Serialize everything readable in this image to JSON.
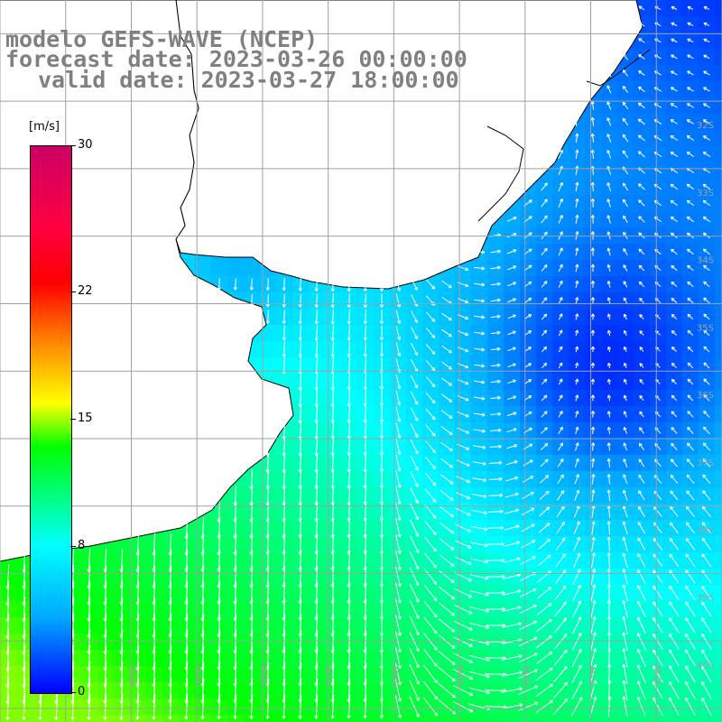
{
  "title": {
    "line1": "modelo GEFS-WAVE (NCEP)",
    "line2": "forecast date: 2023-03-26 00:00:00",
    "line3": "valid date: 2023-03-27 18:00:00"
  },
  "colorbar": {
    "unit": "[m/s]",
    "min": 0,
    "max": 30,
    "ticks": [
      {
        "value": 30,
        "label": "30"
      },
      {
        "value": 22,
        "label": "22"
      },
      {
        "value": 15,
        "label": "15"
      },
      {
        "value": 8,
        "label": "8"
      },
      {
        "value": 0,
        "label": "0"
      }
    ],
    "colors": [
      "#0000ff",
      "#00aaff",
      "#00ffff",
      "#00ff00",
      "#ffff00",
      "#ff8800",
      "#ff0000",
      "#cc0066"
    ]
  },
  "map": {
    "lon_range": [
      -62,
      -51
    ],
    "lat_range": [
      -41.2,
      -30.5
    ],
    "lat_labels": [
      "32S",
      "33S",
      "34S",
      "35S",
      "36S",
      "37S",
      "38S",
      "39S",
      "40S",
      "41S"
    ],
    "lon_labels": [
      "61W",
      "60W",
      "59W",
      "58W",
      "57W",
      "56W",
      "55W",
      "54W",
      "53W",
      "52W",
      "51W"
    ],
    "land_color": "#ffffff",
    "coast_color": "#000000",
    "grid_color": "#a0a0a0",
    "arrow_color": "#ffffff"
  }
}
